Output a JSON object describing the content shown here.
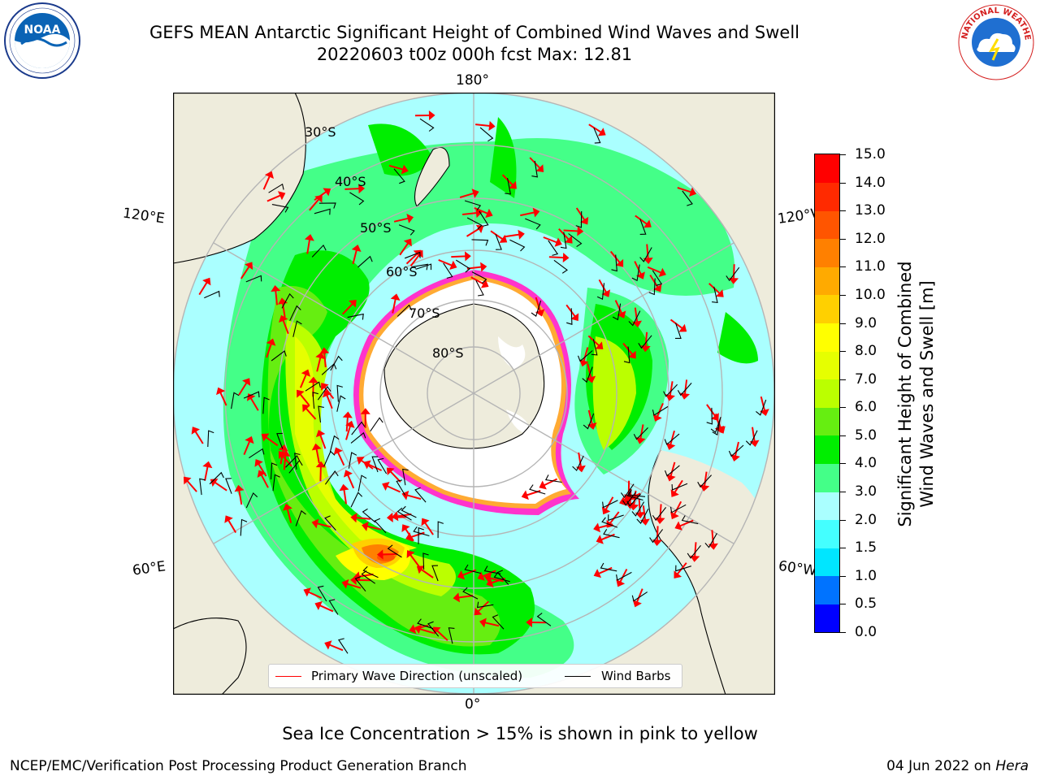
{
  "header": {
    "title_line1": "GEFS MEAN Antarctic Significant Height of Combined Wind Waves and Swell",
    "title_line2": "20220603 t00z 000h fcst   Max: 12.81"
  },
  "logos": {
    "left": "NOAA",
    "right": "NATIONAL WEATHER SERVICE"
  },
  "map": {
    "longitude_labels": {
      "top": "180°",
      "bottom": "0°",
      "left_upper": "120°E",
      "left_lower": "60°E",
      "right_upper": "120°W",
      "right_lower": "60°W"
    },
    "latitude_labels": [
      "30°S",
      "40°S",
      "50°S",
      "60°S",
      "70°S",
      "80°S"
    ],
    "colors": {
      "land": "#eeecdc",
      "ice_sheet": "#ffffff",
      "sea_ice_edge": "#ff33cc",
      "wave_arrow": "#ff0000",
      "wind_barb": "#000000",
      "graticule": "#b5b5b5"
    }
  },
  "colorbar": {
    "label_line1": "Significant Height of Combined",
    "label_line2": "Wind Waves and Swell [m]",
    "ticks": [
      "0.0",
      "0.5",
      "1.0",
      "1.5",
      "2.0",
      "3.0",
      "4.0",
      "5.0",
      "6.0",
      "7.0",
      "8.0",
      "9.0",
      "10.0",
      "11.0",
      "12.0",
      "13.0",
      "14.0",
      "15.0"
    ],
    "colors": [
      "#0000ff",
      "#0073ff",
      "#00e6ff",
      "#44ffff",
      "#aaffff",
      "#44ff88",
      "#00ee00",
      "#66ee11",
      "#bbff00",
      "#e6ff00",
      "#ffff00",
      "#ffd000",
      "#ffaa00",
      "#ff8000",
      "#ff5500",
      "#ff2a00",
      "#ff0000"
    ]
  },
  "legend": {
    "items": [
      {
        "label": "Primary Wave Direction (unscaled)",
        "color": "#ff0000"
      },
      {
        "label": "Wind Barbs",
        "color": "#000000"
      }
    ]
  },
  "footer": {
    "note": "Sea Ice Concentration > 15% is shown in pink to yellow",
    "credit": "NCEP/EMC/Verification Post Processing Product Generation Branch",
    "date_prefix": "04 Jun 2022 on ",
    "machine": "Hera"
  }
}
